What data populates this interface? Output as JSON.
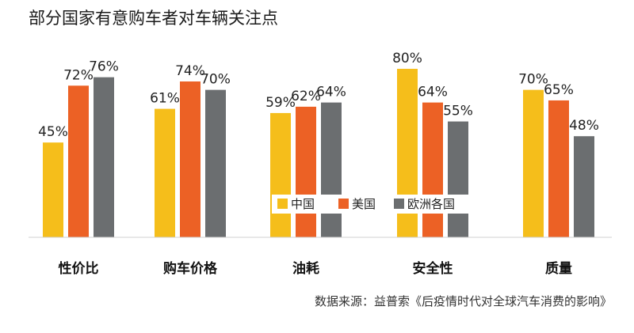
{
  "chart_data": {
    "type": "bar",
    "title": "部分国家有意购车者对车辆关注点",
    "categories": [
      "性价比",
      "购车价格",
      "油耗",
      "安全性",
      "质量"
    ],
    "series": [
      {
        "name": "中国",
        "color": "#F5BE1B",
        "values": [
          45,
          61,
          59,
          80,
          70
        ],
        "labels": [
          "45%",
          "61%",
          "59%",
          "80%",
          "70%"
        ]
      },
      {
        "name": "美国",
        "color": "#EC6125",
        "values": [
          72,
          74,
          62,
          64,
          65
        ],
        "labels": [
          "72%",
          "74%",
          "62%",
          "64%",
          "65%"
        ]
      },
      {
        "name": "欧洲各国",
        "color": "#6B6E70",
        "values": [
          76,
          70,
          64,
          55,
          48
        ],
        "labels": [
          "76%",
          "70%",
          "64%",
          "55%",
          "48%"
        ]
      }
    ],
    "ylim": [
      0,
      85
    ],
    "xlabel": "",
    "ylabel": "",
    "grid": false,
    "legend_position": "center-inside"
  },
  "source_note": "数据来源：益普索《后疫情时代对全球汽车消费的影响》"
}
